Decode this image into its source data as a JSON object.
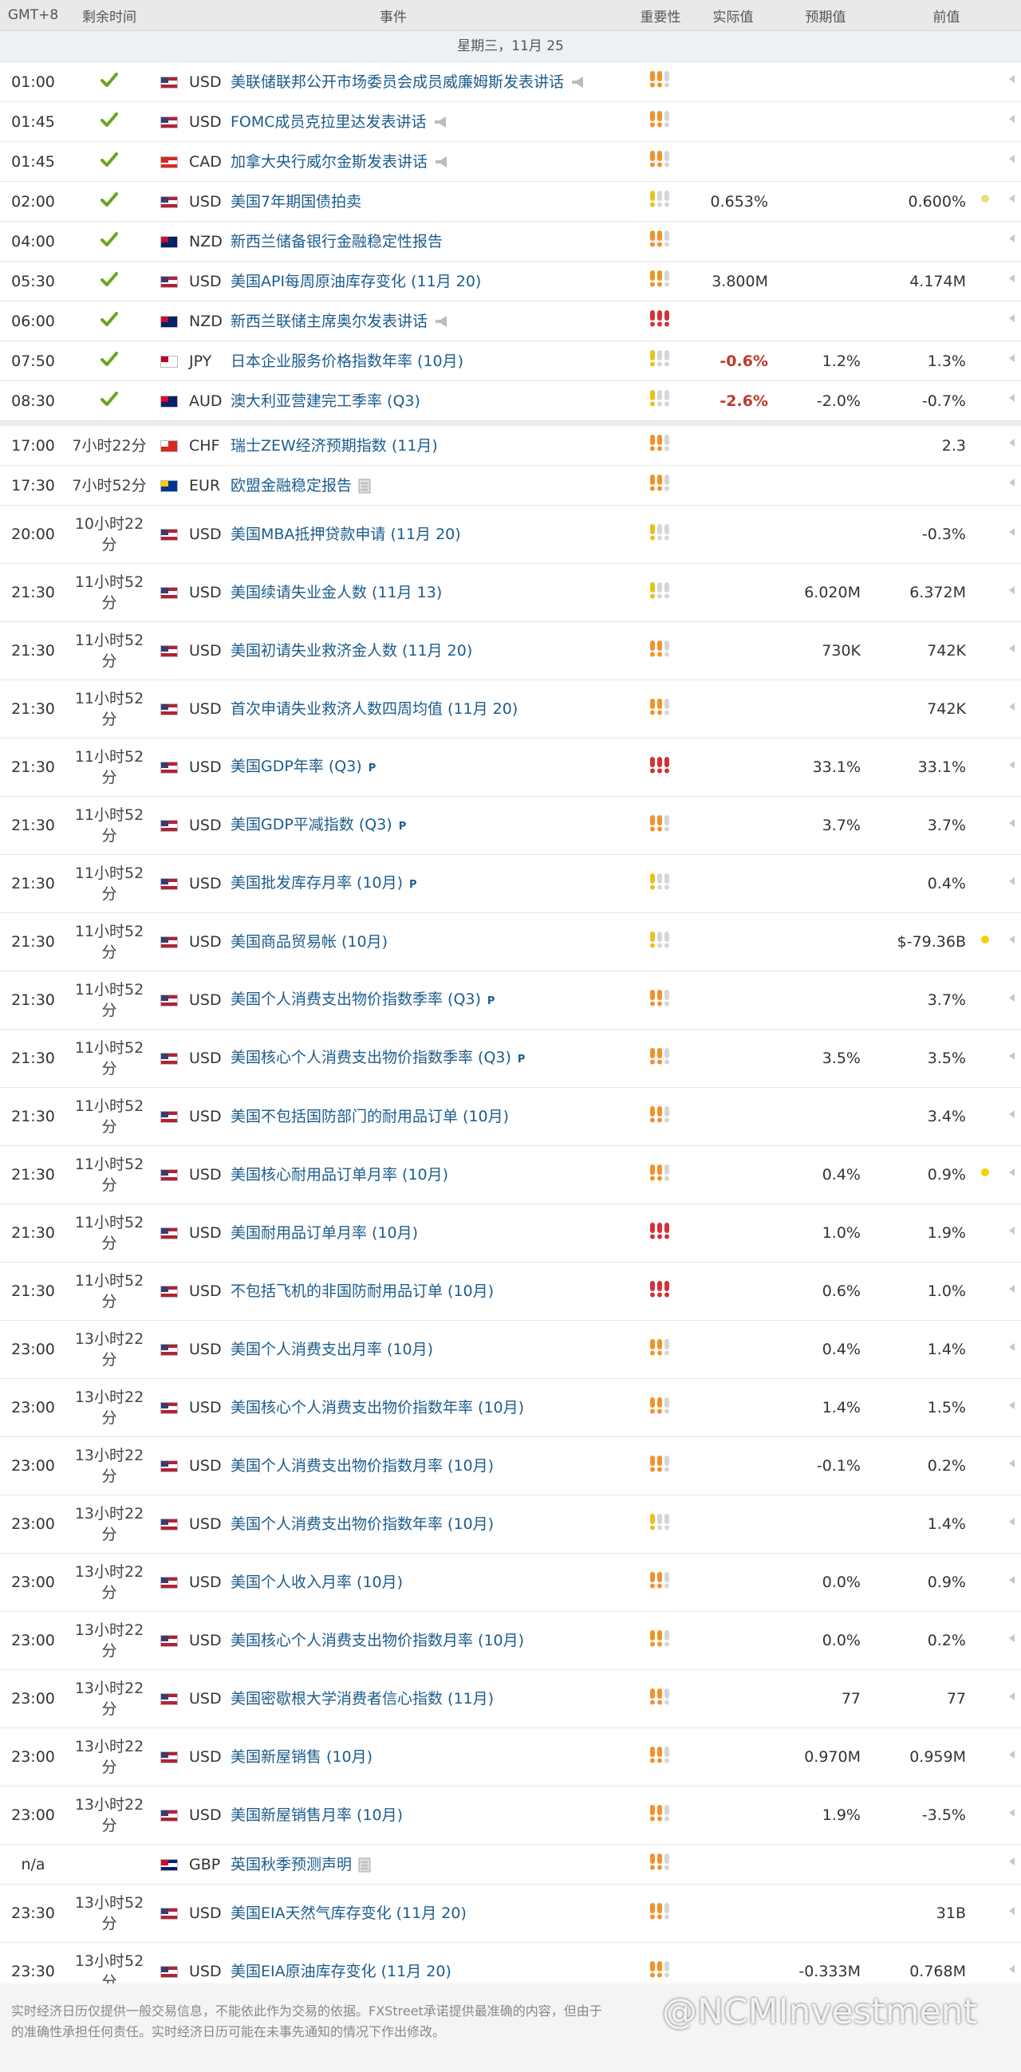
{
  "header": {
    "columns": [
      "GMT+8",
      "剩余时间",
      "事件",
      "重要性",
      "实际值",
      "预期值",
      "前值"
    ]
  },
  "date": "星期三，11月 25",
  "importance_colors": [
    "#e8c21a",
    "#f0932b",
    "#d2323a"
  ],
  "importance_off": "#d6d6d6",
  "rows": [
    {
      "time": "01:00",
      "done": true,
      "currency": "USD",
      "flag": [
        "#b22234",
        "#ffffff",
        "#3c3b6e"
      ],
      "event": "美联储联邦公开市场委员会成员威廉姆斯发表讲话",
      "icon": "speech",
      "importance": 2,
      "actual": null,
      "forecast": null,
      "previous": null
    },
    {
      "time": "01:45",
      "done": true,
      "currency": "USD",
      "flag": [
        "#b22234",
        "#ffffff",
        "#3c3b6e"
      ],
      "event": "FOMC成员克拉里达发表讲话",
      "icon": "speech",
      "importance": 2,
      "actual": null,
      "forecast": null,
      "previous": null
    },
    {
      "time": "01:45",
      "done": true,
      "currency": "CAD",
      "flag": [
        "#d52b1e",
        "#ffffff",
        "#d52b1e"
      ],
      "event": "加拿大央行威尔金斯发表讲话",
      "icon": "speech",
      "importance": 2,
      "actual": null,
      "forecast": null,
      "previous": null
    },
    {
      "time": "02:00",
      "done": true,
      "currency": "USD",
      "flag": [
        "#b22234",
        "#ffffff",
        "#3c3b6e"
      ],
      "event": "美国7年期国债拍卖",
      "importance": 1,
      "actual": "0.653%",
      "forecast": null,
      "previous": "0.600%",
      "dot": "#e8e07a"
    },
    {
      "time": "04:00",
      "done": true,
      "currency": "NZD",
      "flag": [
        "#012169",
        "#012169",
        "#c8102e"
      ],
      "event": "新西兰储备银行金融稳定性报告",
      "importance": 2,
      "actual": null,
      "forecast": null,
      "previous": null
    },
    {
      "time": "05:30",
      "done": true,
      "currency": "USD",
      "flag": [
        "#b22234",
        "#ffffff",
        "#3c3b6e"
      ],
      "event": "美国API每周原油库存变化 (11月 20)",
      "importance": 2,
      "actual": "3.800M",
      "forecast": null,
      "previous": "4.174M"
    },
    {
      "time": "06:00",
      "done": true,
      "currency": "NZD",
      "flag": [
        "#012169",
        "#012169",
        "#c8102e"
      ],
      "event": "新西兰联储主席奥尔发表讲话",
      "icon": "speech",
      "importance": 3,
      "actual": null,
      "forecast": null,
      "previous": null
    },
    {
      "time": "07:50",
      "done": true,
      "currency": "JPY",
      "flag": [
        "#ffffff",
        "#ffffff",
        "#bc002d"
      ],
      "event": "日本企业服务价格指数年率 (10月)",
      "importance": 1,
      "actual": "-0.6%",
      "actual_color": "#c0392b",
      "forecast": "1.2%",
      "previous": "1.3%"
    },
    {
      "time": "08:30",
      "done": true,
      "currency": "AUD",
      "flag": [
        "#012169",
        "#012169",
        "#e4002b"
      ],
      "event": "澳大利亚营建完工季率 (Q3)",
      "importance": 1,
      "actual": "-2.6%",
      "actual_color": "#c0392b",
      "forecast": "-2.0%",
      "previous": "-0.7%"
    },
    {
      "time": "17:00",
      "separator_before": true,
      "remaining": "7小时22分",
      "currency": "CHF",
      "flag": [
        "#d52b1e",
        "#d52b1e",
        "#ffffff"
      ],
      "event": "瑞士ZEW经济预期指数 (11月)",
      "importance": 2,
      "actual": null,
      "forecast": null,
      "previous": "2.3"
    },
    {
      "time": "17:30",
      "remaining": "7小时52分",
      "currency": "EUR",
      "flag": [
        "#003399",
        "#003399",
        "#ffcc00"
      ],
      "event": "欧盟金融稳定报告",
      "icon": "report",
      "importance": 2,
      "actual": null,
      "forecast": null,
      "previous": null
    },
    {
      "time": "20:00",
      "remaining": "10小时22分",
      "currency": "USD",
      "flag": [
        "#b22234",
        "#ffffff",
        "#3c3b6e"
      ],
      "event": "美国MBA抵押贷款申请 (11月 20)",
      "importance": 1,
      "actual": null,
      "forecast": null,
      "previous": "-0.3%"
    },
    {
      "time": "21:30",
      "remaining": "11小时52分",
      "currency": "USD",
      "flag": [
        "#b22234",
        "#ffffff",
        "#3c3b6e"
      ],
      "event": "美国续请失业金人数 (11月 13)",
      "importance": 1,
      "actual": null,
      "forecast": "6.020M",
      "previous": "6.372M"
    },
    {
      "time": "21:30",
      "remaining": "11小时52分",
      "currency": "USD",
      "flag": [
        "#b22234",
        "#ffffff",
        "#3c3b6e"
      ],
      "event": "美国初请失业救济金人数 (11月 20)",
      "importance": 2,
      "actual": null,
      "forecast": "730K",
      "previous": "742K"
    },
    {
      "time": "21:30",
      "remaining": "11小时52分",
      "currency": "USD",
      "flag": [
        "#b22234",
        "#ffffff",
        "#3c3b6e"
      ],
      "event": "首次申请失业救济人数四周均值 (11月 20)",
      "importance": 2,
      "actual": null,
      "forecast": null,
      "previous": "742K"
    },
    {
      "time": "21:30",
      "remaining": "11小时52分",
      "currency": "USD",
      "flag": [
        "#b22234",
        "#ffffff",
        "#3c3b6e"
      ],
      "event": "美国GDP年率 (Q3)",
      "badge": "P",
      "importance": 3,
      "actual": null,
      "forecast": "33.1%",
      "previous": "33.1%"
    },
    {
      "time": "21:30",
      "remaining": "11小时52分",
      "currency": "USD",
      "flag": [
        "#b22234",
        "#ffffff",
        "#3c3b6e"
      ],
      "event": "美国GDP平减指数 (Q3)",
      "badge": "P",
      "importance": 2,
      "actual": null,
      "forecast": "3.7%",
      "previous": "3.7%"
    },
    {
      "time": "21:30",
      "remaining": "11小时52分",
      "currency": "USD",
      "flag": [
        "#b22234",
        "#ffffff",
        "#3c3b6e"
      ],
      "event": "美国批发库存月率 (10月)",
      "badge": "P",
      "importance": 1,
      "actual": null,
      "forecast": null,
      "previous": "0.4%"
    },
    {
      "time": "21:30",
      "remaining": "11小时52分",
      "currency": "USD",
      "flag": [
        "#b22234",
        "#ffffff",
        "#3c3b6e"
      ],
      "event": "美国商品贸易帐 (10月)",
      "importance": 1,
      "actual": null,
      "forecast": null,
      "previous": "$-79.36B",
      "dot": "#f2d300"
    },
    {
      "time": "21:30",
      "remaining": "11小时52分",
      "currency": "USD",
      "flag": [
        "#b22234",
        "#ffffff",
        "#3c3b6e"
      ],
      "event": "美国个人消费支出物价指数季率 (Q3)",
      "badge": "P",
      "importance": 2,
      "actual": null,
      "forecast": null,
      "previous": "3.7%"
    },
    {
      "time": "21:30",
      "remaining": "11小时52分",
      "currency": "USD",
      "flag": [
        "#b22234",
        "#ffffff",
        "#3c3b6e"
      ],
      "event": "美国核心个人消费支出物价指数季率 (Q3)",
      "badge": "P",
      "importance": 2,
      "actual": null,
      "forecast": "3.5%",
      "previous": "3.5%"
    },
    {
      "time": "21:30",
      "remaining": "11小时52分",
      "currency": "USD",
      "flag": [
        "#b22234",
        "#ffffff",
        "#3c3b6e"
      ],
      "event": "美国不包括国防部门的耐用品订单 (10月)",
      "importance": 2,
      "actual": null,
      "forecast": null,
      "previous": "3.4%"
    },
    {
      "time": "21:30",
      "remaining": "11小时52分",
      "currency": "USD",
      "flag": [
        "#b22234",
        "#ffffff",
        "#3c3b6e"
      ],
      "event": "美国核心耐用品订单月率 (10月)",
      "importance": 2,
      "actual": null,
      "forecast": "0.4%",
      "previous": "0.9%",
      "dot": "#f2d300"
    },
    {
      "time": "21:30",
      "remaining": "11小时52分",
      "currency": "USD",
      "flag": [
        "#b22234",
        "#ffffff",
        "#3c3b6e"
      ],
      "event": "美国耐用品订单月率 (10月)",
      "importance": 3,
      "actual": null,
      "forecast": "1.0%",
      "previous": "1.9%"
    },
    {
      "time": "21:30",
      "remaining": "11小时52分",
      "currency": "USD",
      "flag": [
        "#b22234",
        "#ffffff",
        "#3c3b6e"
      ],
      "event": "不包括飞机的非国防耐用品订单 (10月)",
      "importance": 3,
      "actual": null,
      "forecast": "0.6%",
      "previous": "1.0%"
    },
    {
      "time": "23:00",
      "remaining": "13小时22分",
      "currency": "USD",
      "flag": [
        "#b22234",
        "#ffffff",
        "#3c3b6e"
      ],
      "event": "美国个人消费支出月率 (10月)",
      "importance": 2,
      "actual": null,
      "forecast": "0.4%",
      "previous": "1.4%"
    },
    {
      "time": "23:00",
      "remaining": "13小时22分",
      "currency": "USD",
      "flag": [
        "#b22234",
        "#ffffff",
        "#3c3b6e"
      ],
      "event": "美国核心个人消费支出物价指数年率 (10月)",
      "importance": 2,
      "actual": null,
      "forecast": "1.4%",
      "previous": "1.5%"
    },
    {
      "time": "23:00",
      "remaining": "13小时22分",
      "currency": "USD",
      "flag": [
        "#b22234",
        "#ffffff",
        "#3c3b6e"
      ],
      "event": "美国个人消费支出物价指数月率 (10月)",
      "importance": 2,
      "actual": null,
      "forecast": "-0.1%",
      "previous": "0.2%"
    },
    {
      "time": "23:00",
      "remaining": "13小时22分",
      "currency": "USD",
      "flag": [
        "#b22234",
        "#ffffff",
        "#3c3b6e"
      ],
      "event": "美国个人消费支出物价指数年率 (10月)",
      "importance": 1,
      "actual": null,
      "forecast": null,
      "previous": "1.4%"
    },
    {
      "time": "23:00",
      "remaining": "13小时22分",
      "currency": "USD",
      "flag": [
        "#b22234",
        "#ffffff",
        "#3c3b6e"
      ],
      "event": "美国个人收入月率 (10月)",
      "importance": 2,
      "actual": null,
      "forecast": "0.0%",
      "previous": "0.9%"
    },
    {
      "time": "23:00",
      "remaining": "13小时22分",
      "currency": "USD",
      "flag": [
        "#b22234",
        "#ffffff",
        "#3c3b6e"
      ],
      "event": "美国核心个人消费支出物价指数月率 (10月)",
      "importance": 2,
      "actual": null,
      "forecast": "0.0%",
      "previous": "0.2%"
    },
    {
      "time": "23:00",
      "remaining": "13小时22分",
      "currency": "USD",
      "flag": [
        "#b22234",
        "#ffffff",
        "#3c3b6e"
      ],
      "event": "美国密歇根大学消费者信心指数 (11月)",
      "importance": 2,
      "actual": null,
      "forecast": "77",
      "previous": "77"
    },
    {
      "time": "23:00",
      "remaining": "13小时22分",
      "currency": "USD",
      "flag": [
        "#b22234",
        "#ffffff",
        "#3c3b6e"
      ],
      "event": "美国新屋销售 (10月)",
      "importance": 2,
      "actual": null,
      "forecast": "0.970M",
      "previous": "0.959M"
    },
    {
      "time": "23:00",
      "remaining": "13小时22分",
      "currency": "USD",
      "flag": [
        "#b22234",
        "#ffffff",
        "#3c3b6e"
      ],
      "event": "美国新屋销售月率 (10月)",
      "importance": 2,
      "actual": null,
      "forecast": "1.9%",
      "previous": "-3.5%"
    },
    {
      "time": "n/a",
      "currency": "GBP",
      "flag": [
        "#012169",
        "#ffffff",
        "#c8102e"
      ],
      "event": "英国秋季预测声明",
      "icon": "report",
      "importance": 2,
      "actual": null,
      "forecast": null,
      "previous": null
    },
    {
      "time": "23:30",
      "remaining": "13小时52分",
      "currency": "USD",
      "flag": [
        "#b22234",
        "#ffffff",
        "#3c3b6e"
      ],
      "event": "美国EIA天然气库存变化 (11月 20)",
      "importance": 2,
      "actual": null,
      "forecast": null,
      "previous": "31B"
    },
    {
      "time": "23:30",
      "remaining": "13小时52分",
      "currency": "USD",
      "flag": [
        "#b22234",
        "#ffffff",
        "#3c3b6e"
      ],
      "event": "美国EIA原油库存变化 (11月 20)",
      "importance": 2,
      "actual": null,
      "forecast": "-0.333M",
      "previous": "0.768M"
    }
  ],
  "footer": [
    "实时经济日历仅提供一般交易信息，不能依此作为交易的依据。FXStreet承诺提供最准确的内容，但由于",
    "的准确性承担任何责任。实时经济日历可能在未事先通知的情况下作出修改。"
  ],
  "watermark": "@NCMInvestment"
}
